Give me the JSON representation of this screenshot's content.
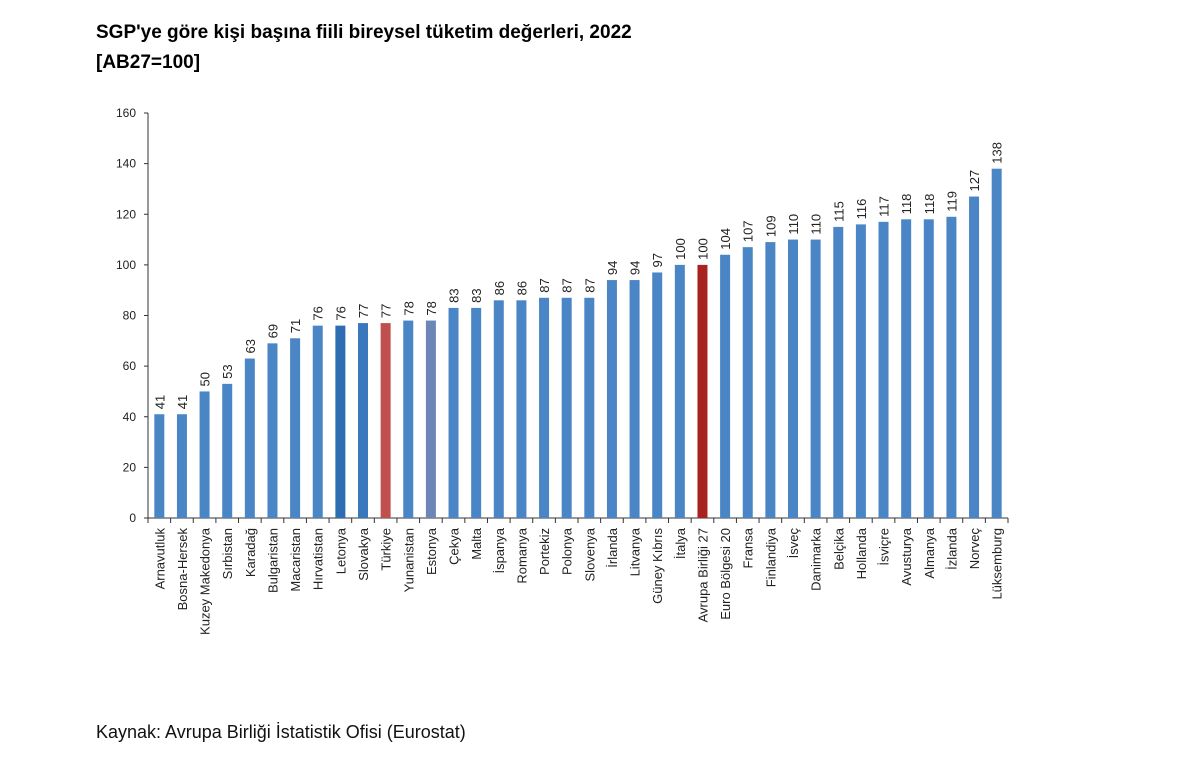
{
  "chart_data": {
    "type": "bar",
    "title": "SGP'ye göre kişi başına fiili bireysel tüketim değerleri, 2022",
    "subtitle": "[AB27=100]",
    "xlabel": "",
    "ylabel": "",
    "ylim": [
      0,
      160
    ],
    "yticks": [
      0,
      20,
      40,
      60,
      80,
      100,
      120,
      140,
      160
    ],
    "grid": false,
    "categories": [
      "Arnavutluk",
      "Bosna-Hersek",
      "Kuzey Makedonya",
      "Sırbistan",
      "Karadağ",
      "Bulgaristan",
      "Macaristan",
      "Hırvatistan",
      "Letonya",
      "Slovakya",
      "Türkiye",
      "Yunanistan",
      "Estonya",
      "Çekya",
      "Malta",
      "İspanya",
      "Romanya",
      "Portekiz",
      "Polonya",
      "Slovenya",
      "İrlanda",
      "Litvanya",
      "Güney Kıbrıs",
      "İtalya",
      "Avrupa Birliği 27",
      "Euro Bölgesi 20",
      "Fransa",
      "Finlandiya",
      "İsveç",
      "Danimarka",
      "Belçika",
      "Hollanda",
      "İsviçre",
      "Avusturya",
      "Almanya",
      "İzlanda",
      "Norveç",
      "Lüksemburg"
    ],
    "values": [
      41,
      41,
      50,
      53,
      63,
      69,
      71,
      76,
      76,
      77,
      77,
      78,
      78,
      83,
      83,
      86,
      86,
      87,
      87,
      87,
      94,
      94,
      97,
      100,
      100,
      104,
      107,
      109,
      110,
      110,
      115,
      116,
      117,
      118,
      118,
      119,
      127,
      138
    ],
    "default_color": "#4a86c6",
    "highlight_colors": {
      "Letonya": "#2f6db3",
      "Slovakya": "#3a78bd",
      "Türkiye": "#c0504d",
      "Estonya": "#6c86b8",
      "Avrupa Birliği 27": "#a8231f"
    }
  },
  "source": "Kaynak: Avrupa Birliği İstatistik Ofisi (Eurostat)"
}
